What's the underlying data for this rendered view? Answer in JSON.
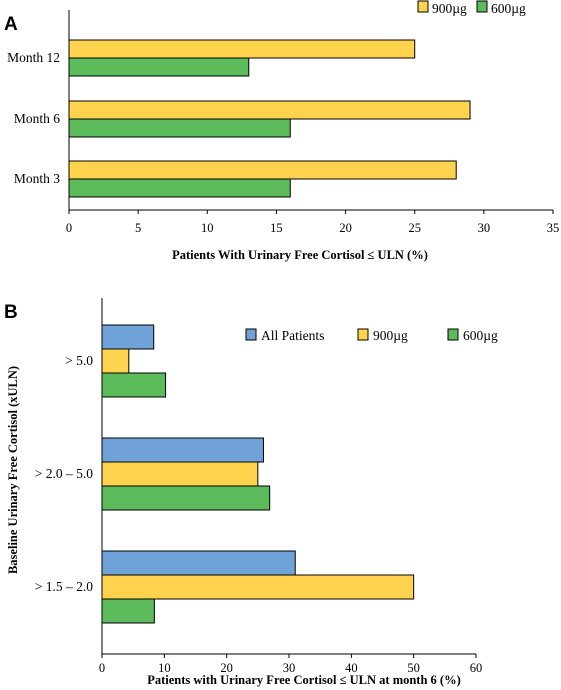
{
  "colors": {
    "all_patients": "#6fa3d8",
    "dose_900": "#ffd34d",
    "dose_600": "#5cbb5a"
  },
  "chart_data": [
    {
      "panel": "A",
      "type": "bar",
      "orientation": "horizontal",
      "categories": [
        "Month 12",
        "Month 6",
        "Month 3"
      ],
      "series": [
        {
          "name": "900µg",
          "color": "#ffd34d",
          "values": [
            25,
            29,
            28
          ]
        },
        {
          "name": "600µg",
          "color": "#5cbb5a",
          "values": [
            13,
            16,
            16
          ]
        }
      ],
      "xlim": [
        0,
        35
      ],
      "xticks": [
        "0",
        "5",
        "10",
        "15",
        "20",
        "25",
        "30",
        "35"
      ],
      "tick_values": [
        0,
        5,
        10,
        15,
        20,
        25,
        30,
        35
      ],
      "xlabel": "Patients With Urinary Free Cortisol ≤ ULN (%)",
      "ylabel": "",
      "title": "",
      "grid": false,
      "legend_position": "top-right"
    },
    {
      "panel": "B",
      "type": "bar",
      "orientation": "horizontal",
      "categories": [
        "> 5.0",
        "> 2.0 – 5.0",
        "> 1.5 – 2.0"
      ],
      "series": [
        {
          "name": "All Patients",
          "color": "#6fa3d8",
          "values": [
            8.3,
            25.9,
            31
          ]
        },
        {
          "name": "900µg",
          "color": "#ffd34d",
          "values": [
            4.3,
            25,
            50
          ]
        },
        {
          "name": "600µg",
          "color": "#5cbb5a",
          "values": [
            10.2,
            26.9,
            8.4
          ]
        }
      ],
      "xlim": [
        0,
        60
      ],
      "xticks": [
        "0",
        "10",
        "20",
        "30",
        "40",
        "50",
        "60"
      ],
      "tick_values": [
        0,
        10,
        20,
        30,
        40,
        50,
        60
      ],
      "xlabel": "Patients with Urinary Free Cortisol ≤ ULN at month 6 (%)",
      "ylabel": "Baseline Urinary Free Cortisol (xULN)",
      "title": "",
      "grid": false,
      "legend_position": "top-right"
    }
  ]
}
